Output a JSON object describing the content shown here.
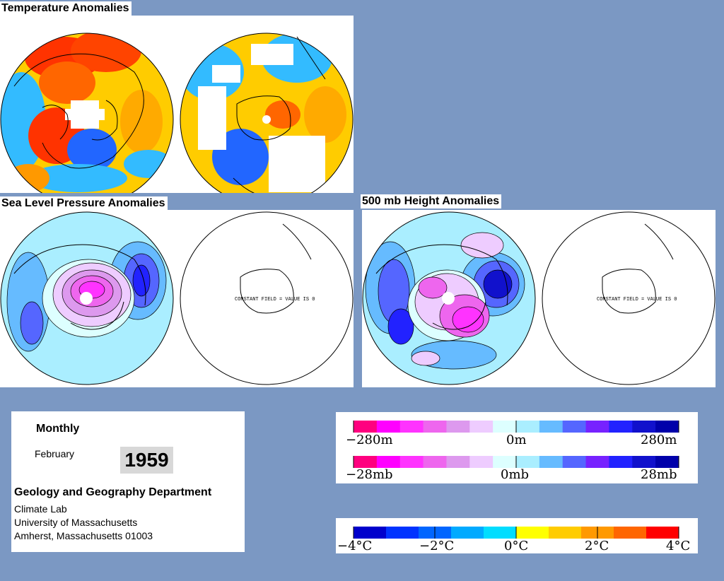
{
  "titles": {
    "temperature": "Temperature Anomalies",
    "slp": "Sea Level Pressure Anomalies",
    "height500": "500 mb Height Anomalies"
  },
  "constant_field_label": "CONSTANT FIELD = VALUE IS 0",
  "info": {
    "period": "Monthly",
    "month": "February",
    "year": "1959",
    "department": "Geology and Geography Department",
    "lab": "Climate Lab",
    "university": "University of Massachusetts",
    "address": "Amherst, Massachusetts 01003"
  },
  "height_scale": {
    "left": "−280m",
    "center": "0m",
    "right": "280m"
  },
  "pressure_scale": {
    "left": "−28mb",
    "center": "0mb",
    "right": "28mb"
  },
  "temp_scale": {
    "t1": "−4°C",
    "t2": "−2°C",
    "t3": "0°C",
    "t4": "2°C",
    "t5": "4°C"
  },
  "colors": {
    "background": "#7b98c3",
    "anomaly_scale": [
      "#ff007f",
      "#ff00ff",
      "#ff33ff",
      "#ee66ee",
      "#dd99ee",
      "#eeccff",
      "#ddffff",
      "#aaeeff",
      "#66bbff",
      "#5566ff",
      "#7722ff",
      "#2222ff",
      "#1111cc",
      "#0000aa"
    ],
    "temp_scale": [
      "#0000cc",
      "#0033ff",
      "#0066ff",
      "#00aaff",
      "#00ddff",
      "#ffff00",
      "#ffcc00",
      "#ff9900",
      "#ff6600",
      "#ff0000"
    ]
  }
}
